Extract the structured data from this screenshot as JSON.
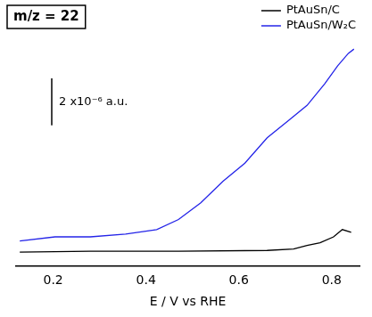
{
  "chart_data": {
    "type": "line",
    "title": "m/z = 22",
    "x_label": "E / V vs RHE",
    "xlim": [
      0.12,
      0.86
    ],
    "xticks": [
      0.2,
      0.4,
      0.6,
      0.8
    ],
    "ylim": [
      0,
      9.5
    ],
    "tick_labels": "x",
    "grid": false,
    "legend": "upper right",
    "scale_bar": {
      "value": 2,
      "label": "2 x10⁻⁶ a.u."
    },
    "series": [
      {
        "name": "PtAuSn/C",
        "color": "#000000",
        "x": [
          0.128,
          0.28,
          0.47,
          0.661,
          0.718,
          0.747,
          0.775,
          0.804,
          0.823,
          0.842
        ],
        "values": [
          0.58,
          0.62,
          0.62,
          0.65,
          0.71,
          0.86,
          0.98,
          1.23,
          1.54,
          1.42
        ]
      },
      {
        "name": "PtAuSn/W₂C",
        "color": "#2424e8",
        "x": [
          0.128,
          0.204,
          0.28,
          0.356,
          0.423,
          0.47,
          0.518,
          0.566,
          0.613,
          0.661,
          0.709,
          0.747,
          0.785,
          0.813,
          0.836,
          0.848
        ],
        "values": [
          1.05,
          1.23,
          1.23,
          1.35,
          1.54,
          1.97,
          2.68,
          3.6,
          4.37,
          5.45,
          6.22,
          6.83,
          7.75,
          8.52,
          9.05,
          9.23
        ]
      }
    ]
  }
}
